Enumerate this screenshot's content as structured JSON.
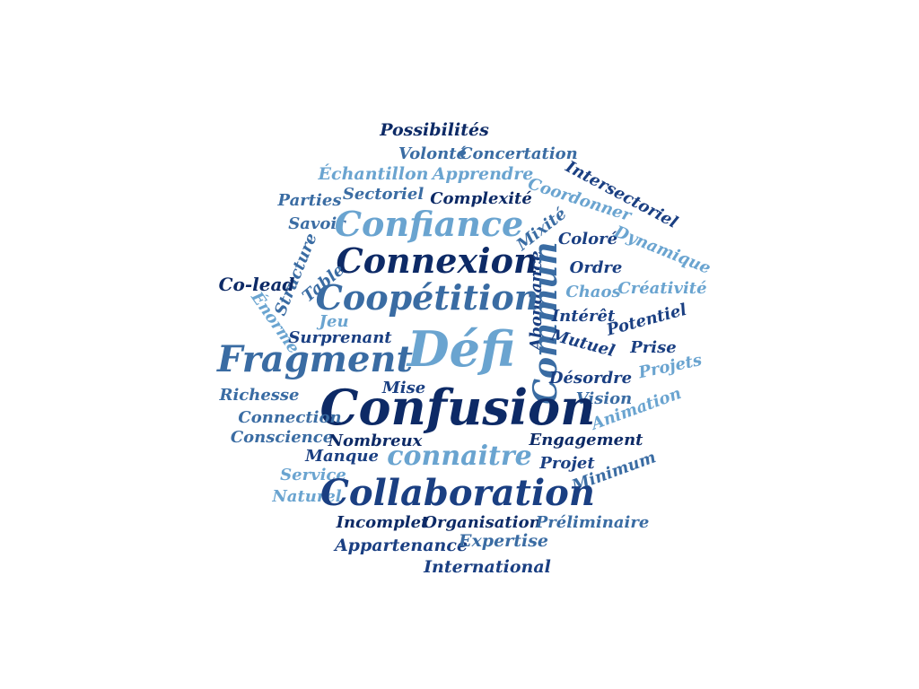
{
  "palette": {
    "navy": "#0d2a66",
    "dark_blue": "#1a3f82",
    "mid_blue": "#3a6ca3",
    "light_blue": "#6aa4d0"
  },
  "words": [
    {
      "text": "Possibilités",
      "color": "navy"
    },
    {
      "text": "Volonté",
      "color": "mid_blue"
    },
    {
      "text": "Concertation",
      "color": "mid_blue"
    },
    {
      "text": "Échantillon",
      "color": "light_blue"
    },
    {
      "text": "Apprendre",
      "color": "light_blue"
    },
    {
      "text": "Intersectoriel",
      "color": "dark_blue"
    },
    {
      "text": "Parties",
      "color": "mid_blue"
    },
    {
      "text": "Sectoriel",
      "color": "mid_blue"
    },
    {
      "text": "Complexité",
      "color": "navy"
    },
    {
      "text": "Coordonner",
      "color": "light_blue"
    },
    {
      "text": "Savoir",
      "color": "mid_blue"
    },
    {
      "text": "Confiance",
      "color": "light_blue"
    },
    {
      "text": "Mixité",
      "color": "mid_blue"
    },
    {
      "text": "Coloré",
      "color": "dark_blue"
    },
    {
      "text": "Dynamique",
      "color": "light_blue"
    },
    {
      "text": "Structure",
      "color": "mid_blue"
    },
    {
      "text": "Connexion",
      "color": "navy"
    },
    {
      "text": "Abondance",
      "color": "dark_blue"
    },
    {
      "text": "Commun",
      "color": "mid_blue"
    },
    {
      "text": "Ordre",
      "color": "dark_blue"
    },
    {
      "text": "Co-lead",
      "color": "navy"
    },
    {
      "text": "Table",
      "color": "mid_blue"
    },
    {
      "text": "Chaos",
      "color": "light_blue"
    },
    {
      "text": "Créativité",
      "color": "light_blue"
    },
    {
      "text": "Énorme",
      "color": "light_blue"
    },
    {
      "text": "Coopétition",
      "color": "mid_blue"
    },
    {
      "text": "Intérêt",
      "color": "dark_blue"
    },
    {
      "text": "Potentiel",
      "color": "dark_blue"
    },
    {
      "text": "Jeu",
      "color": "light_blue"
    },
    {
      "text": "Surprenant",
      "color": "dark_blue"
    },
    {
      "text": "Défi",
      "color": "light_blue"
    },
    {
      "text": "Mutuel",
      "color": "dark_blue"
    },
    {
      "text": "Prise",
      "color": "dark_blue"
    },
    {
      "text": "Fragment",
      "color": "mid_blue"
    },
    {
      "text": "Projets",
      "color": "light_blue"
    },
    {
      "text": "Désordre",
      "color": "dark_blue"
    },
    {
      "text": "Richesse",
      "color": "mid_blue"
    },
    {
      "text": "Mise",
      "color": "dark_blue"
    },
    {
      "text": "Vision",
      "color": "mid_blue"
    },
    {
      "text": "Confusion",
      "color": "navy"
    },
    {
      "text": "Animation",
      "color": "light_blue"
    },
    {
      "text": "Connection",
      "color": "mid_blue"
    },
    {
      "text": "Conscience",
      "color": "mid_blue"
    },
    {
      "text": "Nombreux",
      "color": "navy"
    },
    {
      "text": "Engagement",
      "color": "navy"
    },
    {
      "text": "Manque",
      "color": "dark_blue"
    },
    {
      "text": "connaitre",
      "color": "light_blue"
    },
    {
      "text": "Projet",
      "color": "dark_blue"
    },
    {
      "text": "Minimum",
      "color": "mid_blue"
    },
    {
      "text": "Service",
      "color": "light_blue"
    },
    {
      "text": "Naturel",
      "color": "light_blue"
    },
    {
      "text": "Collaboration",
      "color": "dark_blue"
    },
    {
      "text": "Incomplet",
      "color": "navy"
    },
    {
      "text": "Organisation",
      "color": "navy"
    },
    {
      "text": "Préliminaire",
      "color": "mid_blue"
    },
    {
      "text": "Appartenance",
      "color": "dark_blue"
    },
    {
      "text": "Expertise",
      "color": "mid_blue"
    },
    {
      "text": "International",
      "color": "dark_blue"
    }
  ]
}
